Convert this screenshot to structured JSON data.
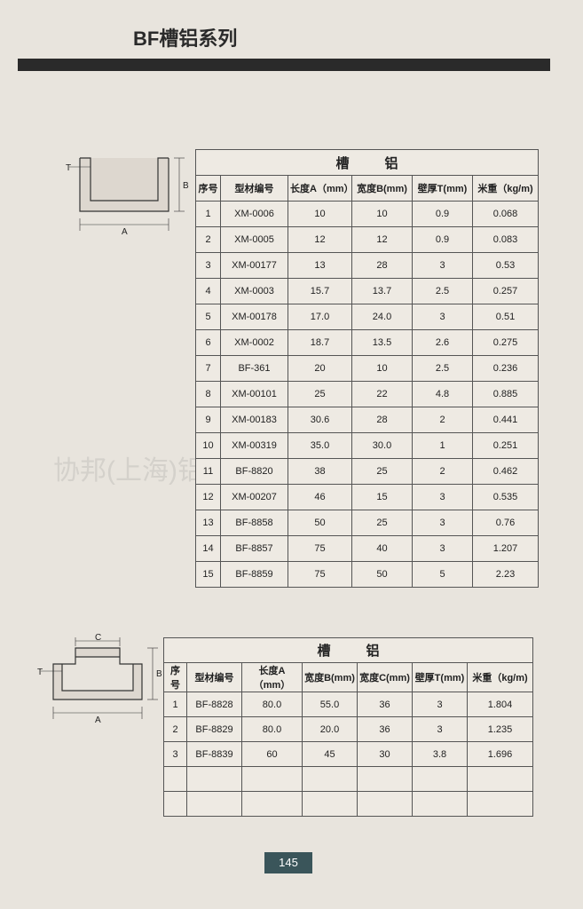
{
  "title": "BF槽铝系列",
  "watermark": "协邦(上海)铝制品有限公司",
  "page_number": "145",
  "table1": {
    "header_title": "槽铝",
    "columns": [
      "序号",
      "型材编号",
      "长度A（mm）",
      "宽度B(mm)",
      "壁厚T(mm)",
      "米重（kg/m)"
    ],
    "col_widths_class": [
      "c-idx",
      "c-code",
      "c-a",
      "c-b",
      "c-t",
      "c-w"
    ],
    "rows": [
      [
        "1",
        "XM-0006",
        "10",
        "10",
        "0.9",
        "0.068"
      ],
      [
        "2",
        "XM-0005",
        "12",
        "12",
        "0.9",
        "0.083"
      ],
      [
        "3",
        "XM-00177",
        "13",
        "28",
        "3",
        "0.53"
      ],
      [
        "4",
        "XM-0003",
        "15.7",
        "13.7",
        "2.5",
        "0.257"
      ],
      [
        "5",
        "XM-00178",
        "17.0",
        "24.0",
        "3",
        "0.51"
      ],
      [
        "6",
        "XM-0002",
        "18.7",
        "13.5",
        "2.6",
        "0.275"
      ],
      [
        "7",
        "BF-361",
        "20",
        "10",
        "2.5",
        "0.236"
      ],
      [
        "8",
        "XM-00101",
        "25",
        "22",
        "4.8",
        "0.885"
      ],
      [
        "9",
        "XM-00183",
        "30.6",
        "28",
        "2",
        "0.441"
      ],
      [
        "10",
        "XM-00319",
        "35.0",
        "30.0",
        "1",
        "0.251"
      ],
      [
        "11",
        "BF-8820",
        "38",
        "25",
        "2",
        "0.462"
      ],
      [
        "12",
        "XM-00207",
        "46",
        "15",
        "3",
        "0.535"
      ],
      [
        "13",
        "BF-8858",
        "50",
        "25",
        "3",
        "0.76"
      ],
      [
        "14",
        "BF-8857",
        "75",
        "40",
        "3",
        "1.207"
      ],
      [
        "15",
        "BF-8859",
        "75",
        "50",
        "5",
        "2.23"
      ]
    ]
  },
  "table2": {
    "header_title": "槽铝",
    "columns": [
      "序号",
      "型材编号",
      "长度A（mm）",
      "宽度B(mm)",
      "宽度C(mm)",
      "壁厚T(mm)",
      "米重（kg/m)"
    ],
    "col_widths_class": [
      "c-idx",
      "c-code",
      "c-a",
      "c-b",
      "c-c",
      "c-t",
      "c-w"
    ],
    "rows": [
      [
        "1",
        "BF-8828",
        "80.0",
        "55.0",
        "36",
        "3",
        "1.804"
      ],
      [
        "2",
        "BF-8829",
        "80.0",
        "20.0",
        "36",
        "3",
        "1.235"
      ],
      [
        "3",
        "BF-8839",
        "60",
        "45",
        "30",
        "3.8",
        "1.696"
      ],
      [
        "",
        "",
        "",
        "",
        "",
        "",
        ""
      ],
      [
        "",
        "",
        "",
        "",
        "",
        "",
        ""
      ]
    ]
  },
  "diagram1": {
    "labels": {
      "A": "A",
      "B": "B",
      "T": "T"
    }
  },
  "diagram2": {
    "labels": {
      "A": "A",
      "B": "B",
      "C": "C",
      "T": "T"
    }
  },
  "colors": {
    "page_bg": "#e8e4dd",
    "bar": "#2a2a2a",
    "border": "#555",
    "pagenum_bg": "#3a555a"
  }
}
